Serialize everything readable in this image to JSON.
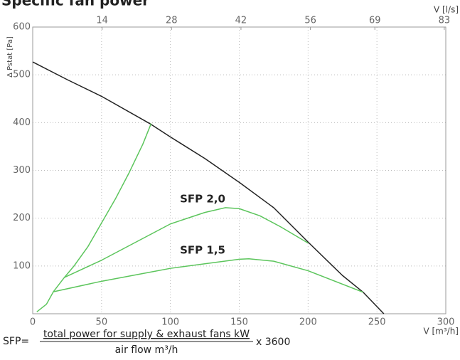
{
  "chart_data": {
    "type": "line",
    "title": "Specific fan power",
    "ylabel": "Δ Pstat [Pa]",
    "xlabel": "V [m³/h]",
    "x2label": "V [l/s]",
    "xlim": [
      0,
      300
    ],
    "xticks": [
      0,
      50,
      100,
      150,
      200,
      250,
      300
    ],
    "x2lim": [
      0,
      83.3
    ],
    "x2ticks": [
      14,
      28,
      42,
      56,
      69,
      83
    ],
    "ylim": [
      0,
      600
    ],
    "yticks": [
      100,
      200,
      300,
      400,
      500,
      600
    ],
    "grid": true,
    "series": [
      {
        "color": "#222222",
        "x": [
          0,
          25,
          50,
          85,
          100,
          125,
          150,
          175,
          200,
          225,
          240,
          255
        ],
        "values": [
          527,
          490,
          455,
          398,
          370,
          325,
          275,
          222,
          150,
          80,
          45,
          0
        ]
      },
      {
        "color": "#5cc55c",
        "x": [
          3,
          10,
          15,
          23,
          30,
          40,
          50,
          60,
          70,
          80,
          86
        ],
        "values": [
          4,
          20,
          46,
          76,
          100,
          140,
          190,
          240,
          295,
          355,
          398
        ]
      },
      {
        "name": "SFP 2,0",
        "color": "#5cc55c",
        "x": [
          23,
          50,
          75,
          100,
          125,
          140,
          150,
          165,
          180,
          200
        ],
        "values": [
          76,
          112,
          150,
          188,
          212,
          222,
          220,
          205,
          182,
          148
        ]
      },
      {
        "name": "SFP 1,5",
        "color": "#5cc55c",
        "x": [
          15,
          50,
          100,
          150,
          157,
          175,
          200,
          240
        ],
        "values": [
          46,
          68,
          95,
          114,
          115,
          110,
          90,
          45
        ]
      }
    ]
  },
  "formula": {
    "prefix": "SFP=",
    "numerator": "total power for supply & exhaust fans kW",
    "denominator": "air flow m³/h",
    "suffix": "x 3600"
  }
}
